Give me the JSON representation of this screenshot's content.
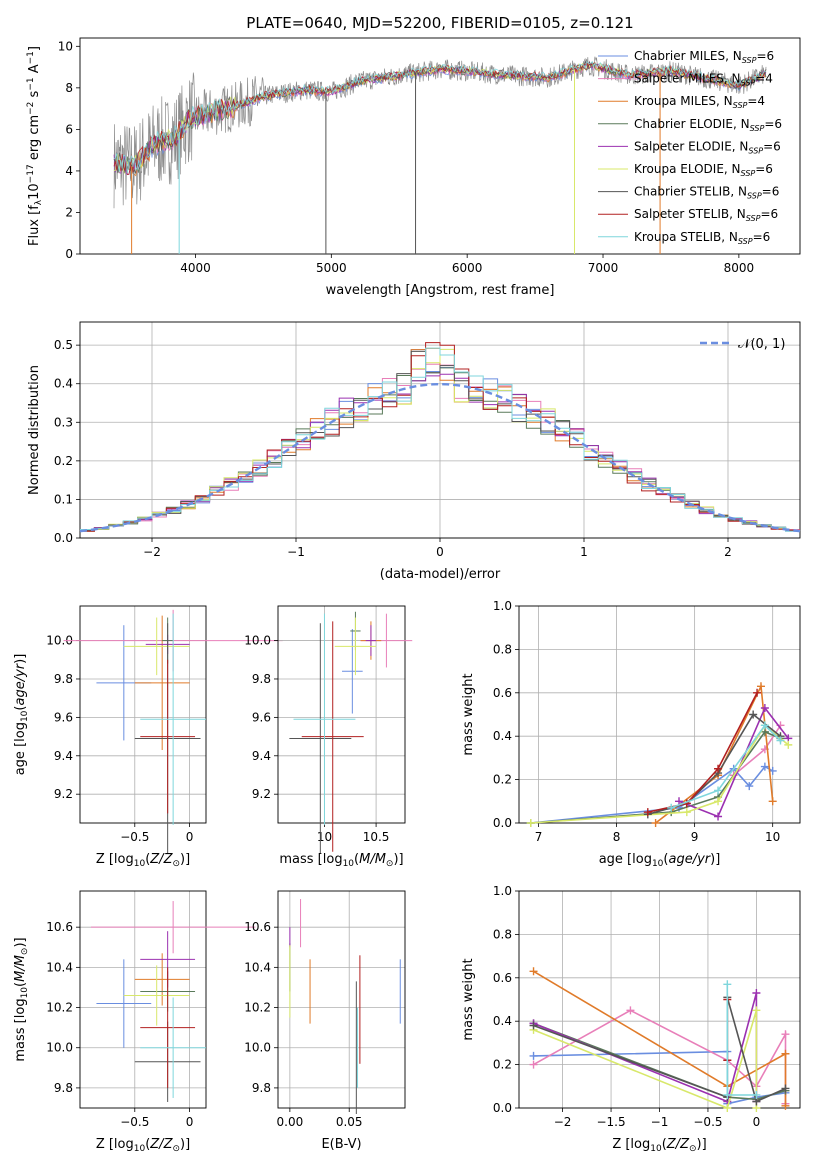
{
  "figure": {
    "title": "PLATE=0640, MJD=52200, FIBERID=0105, z=0.121"
  },
  "colors": {
    "chabrier_miles": "#6a8ee0",
    "salpeter_miles": "#e87fb9",
    "kroupa_miles": "#e07b2a",
    "chabrier_elodie": "#5a7a5a",
    "salpeter_elodie": "#9b30b0",
    "kroupa_elodie": "#d8e86a",
    "chabrier_stelib": "#555555",
    "salpeter_stelib": "#b22020",
    "kroupa_stelib": "#7fd6dc",
    "data": "#8c8c8c"
  },
  "chart_data": [
    {
      "type": "line",
      "id": "spectrum",
      "xlabel": "wavelength [Angstrom, rest frame]",
      "ylabel": "Flux [f_λ 10^-17 erg cm^-2 s^-1 A^-1]",
      "xlim": [
        3150,
        8450
      ],
      "ylim": [
        0,
        10.4
      ],
      "xticks": [
        4000,
        5000,
        6000,
        7000,
        8000
      ],
      "yticks": [
        0,
        2,
        4,
        6,
        8,
        10
      ],
      "legend_position": "top-right",
      "legend": [
        {
          "label": "Chabrier MILES, N_SSP=6",
          "color": "#6a8ee0"
        },
        {
          "label": "Salpeter MILES, N_SSP=4",
          "color": "#e87fb9"
        },
        {
          "label": "Kroupa MILES, N_SSP=4",
          "color": "#e07b2a"
        },
        {
          "label": "Chabrier ELODIE, N_SSP=6",
          "color": "#5a7a5a"
        },
        {
          "label": "Salpeter ELODIE, N_SSP=6",
          "color": "#9b30b0"
        },
        {
          "label": "Kroupa ELODIE, N_SSP=6",
          "color": "#d8e86a"
        },
        {
          "label": "Chabrier STELIB, N_SSP=6",
          "color": "#555555"
        },
        {
          "label": "Salpeter STELIB, N_SSP=6",
          "color": "#b22020"
        },
        {
          "label": "Kroupa STELIB, N_SSP=6",
          "color": "#7fd6dc"
        }
      ],
      "continuum": [
        [
          3400,
          4.4
        ],
        [
          3550,
          4.2
        ],
        [
          3700,
          5.3
        ],
        [
          3850,
          5.6
        ],
        [
          3950,
          6.5
        ],
        [
          4100,
          6.8
        ],
        [
          4300,
          7.1
        ],
        [
          4500,
          7.6
        ],
        [
          4800,
          7.9
        ],
        [
          5000,
          7.8
        ],
        [
          5200,
          8.3
        ],
        [
          5500,
          8.6
        ],
        [
          5800,
          8.9
        ],
        [
          6000,
          8.8
        ],
        [
          6300,
          8.6
        ],
        [
          6600,
          8.5
        ],
        [
          6900,
          9.1
        ],
        [
          7200,
          8.6
        ],
        [
          7500,
          8.8
        ],
        [
          7800,
          8.4
        ],
        [
          8000,
          8.1
        ],
        [
          8200,
          8.7
        ]
      ]
    },
    {
      "type": "histogram",
      "id": "residuals",
      "xlabel": "(data-model)/error",
      "ylabel": "Normed distribution",
      "xlim": [
        -2.5,
        2.5
      ],
      "ylim": [
        0,
        0.56
      ],
      "xticks": [
        -2,
        -1,
        0,
        1,
        2
      ],
      "yticks": [
        0.0,
        0.1,
        0.2,
        0.3,
        0.4,
        0.5
      ],
      "legend_position": "top-right",
      "reference_curve": {
        "label": "𝒩(0, 1)",
        "color": "#6a8ee0",
        "style": "dashed",
        "mean": 0,
        "sigma": 1
      },
      "bin_width": 0.1,
      "bin_start": -2.5
    },
    {
      "type": "errorbar",
      "id": "age_vs_Z",
      "xlabel": "Z [log10(Z/Z☉)]",
      "ylabel": "age [log10(age/yr)]",
      "xlim": [
        -1.0,
        0.15
      ],
      "ylim": [
        9.05,
        10.18
      ],
      "xticks": [
        -0.5,
        0.0
      ],
      "yticks": [
        9.2,
        9.4,
        9.6,
        9.8,
        10.0
      ],
      "points": [
        {
          "model": "chabrier_miles",
          "x": -0.6,
          "y": 9.78,
          "xerr": 0.25,
          "yerr": 0.3
        },
        {
          "model": "salpeter_miles",
          "x": -0.15,
          "y": 10.0,
          "xerr": 1.0,
          "yerr": 0.16
        },
        {
          "model": "kroupa_miles",
          "x": -0.25,
          "y": 9.78,
          "xerr": 0.25,
          "yerr": 0.35
        },
        {
          "model": "chabrier_elodie",
          "x": -0.2,
          "y": 10.0,
          "xerr": 0.05,
          "yerr": 0.12
        },
        {
          "model": "salpeter_elodie",
          "x": -0.2,
          "y": 9.98,
          "xerr": 0.2,
          "yerr": 0.05
        },
        {
          "model": "kroupa_elodie",
          "x": -0.3,
          "y": 9.97,
          "xerr": 0.3,
          "yerr": 0.15
        },
        {
          "model": "chabrier_stelib",
          "x": -0.2,
          "y": 9.49,
          "xerr": 0.3,
          "yerr": 0.6
        },
        {
          "model": "salpeter_stelib",
          "x": -0.2,
          "y": 9.5,
          "xerr": 0.25,
          "yerr": 0.4
        },
        {
          "model": "kroupa_stelib",
          "x": -0.15,
          "y": 9.59,
          "xerr": 0.3,
          "yerr": 0.55
        }
      ]
    },
    {
      "type": "errorbar",
      "id": "age_vs_mass",
      "xlabel": "mass [log10(M/M☉)]",
      "ylabel": "",
      "xlim": [
        9.55,
        10.78
      ],
      "ylim": [
        9.05,
        10.18
      ],
      "xticks": [
        10.0,
        10.5
      ],
      "yticks": [
        9.2,
        9.4,
        9.6,
        9.8,
        10.0
      ],
      "points": [
        {
          "model": "chabrier_miles",
          "x": 10.27,
          "y": 9.84,
          "xerr": 0.1,
          "yerr": 0.22
        },
        {
          "model": "salpeter_miles",
          "x": 10.6,
          "y": 10.0,
          "xerr": 0.25,
          "yerr": 0.14
        },
        {
          "model": "kroupa_miles",
          "x": 10.45,
          "y": 10.0,
          "xerr": 0.1,
          "yerr": 0.1
        },
        {
          "model": "chabrier_elodie",
          "x": 10.3,
          "y": 10.05,
          "xerr": 0.05,
          "yerr": 0.1
        },
        {
          "model": "salpeter_elodie",
          "x": 10.45,
          "y": 10.0,
          "xerr": 0.05,
          "yerr": 0.08
        },
        {
          "model": "kroupa_elodie",
          "x": 10.3,
          "y": 9.97,
          "xerr": 0.2,
          "yerr": 0.15
        },
        {
          "model": "chabrier_stelib",
          "x": 9.96,
          "y": 9.49,
          "xerr": 0.3,
          "yerr": 0.6
        },
        {
          "model": "salpeter_stelib",
          "x": 10.08,
          "y": 9.5,
          "xerr": 0.3,
          "yerr": 0.6
        },
        {
          "model": "kroupa_stelib",
          "x": 10.0,
          "y": 9.59,
          "xerr": 0.3,
          "yerr": 0.55
        }
      ]
    },
    {
      "type": "line",
      "id": "mass_weight_vs_age",
      "xlabel": "age [log10(age/yr)]",
      "ylabel": "mass weight",
      "xlim": [
        6.75,
        10.35
      ],
      "ylim": [
        0,
        1.0
      ],
      "xticks": [
        7,
        8,
        9,
        10
      ],
      "yticks": [
        0.0,
        0.2,
        0.4,
        0.6,
        0.8,
        1.0
      ],
      "series": [
        {
          "model": "chabrier_miles",
          "x": [
            6.9,
            8.8,
            9.5,
            9.7,
            9.9,
            10.0
          ],
          "y": [
            0.0,
            0.07,
            0.25,
            0.17,
            0.26,
            0.24
          ]
        },
        {
          "model": "salpeter_miles",
          "x": [
            9.5,
            9.9,
            10.1
          ],
          "y": [
            0.22,
            0.34,
            0.45
          ]
        },
        {
          "model": "kroupa_miles",
          "x": [
            8.5,
            9.3,
            9.85,
            10.0
          ],
          "y": [
            0.0,
            0.22,
            0.63,
            0.1
          ]
        },
        {
          "model": "chabrier_elodie",
          "x": [
            6.9,
            8.7,
            9.3,
            9.9,
            10.1
          ],
          "y": [
            0.0,
            0.05,
            0.12,
            0.42,
            0.39
          ]
        },
        {
          "model": "salpeter_elodie",
          "x": [
            8.8,
            9.3,
            9.9,
            10.2
          ],
          "y": [
            0.1,
            0.03,
            0.53,
            0.39
          ]
        },
        {
          "model": "kroupa_elodie",
          "x": [
            6.9,
            8.9,
            9.3,
            9.9,
            10.2
          ],
          "y": [
            0.0,
            0.05,
            0.1,
            0.45,
            0.36
          ]
        },
        {
          "model": "chabrier_stelib",
          "x": [
            8.4,
            8.9,
            9.3,
            9.75,
            10.1
          ],
          "y": [
            0.04,
            0.09,
            0.23,
            0.5,
            0.4
          ]
        },
        {
          "model": "salpeter_stelib",
          "x": [
            8.4,
            8.9,
            9.3,
            9.8
          ],
          "y": [
            0.05,
            0.09,
            0.25,
            0.6
          ]
        },
        {
          "model": "kroupa_stelib",
          "x": [
            8.7,
            9.3,
            9.9,
            10.1
          ],
          "y": [
            0.07,
            0.15,
            0.45,
            0.38
          ]
        }
      ]
    },
    {
      "type": "errorbar",
      "id": "mass_vs_Z",
      "xlabel": "Z [log10(Z/Z☉)]",
      "ylabel": "mass [log10(M/M☉)]",
      "xlim": [
        -1.0,
        0.15
      ],
      "ylim": [
        9.7,
        10.78
      ],
      "xticks": [
        -0.5,
        0.0
      ],
      "yticks": [
        9.8,
        10.0,
        10.2,
        10.4,
        10.6
      ],
      "points": [
        {
          "model": "chabrier_miles",
          "x": -0.6,
          "y": 10.22,
          "xerr": 0.25,
          "yerr": 0.22
        },
        {
          "model": "salpeter_miles",
          "x": -0.15,
          "y": 10.6,
          "xerr": 0.75,
          "yerr": 0.13
        },
        {
          "model": "kroupa_miles",
          "x": -0.25,
          "y": 10.34,
          "xerr": 0.25,
          "yerr": 0.13
        },
        {
          "model": "chabrier_elodie",
          "x": -0.2,
          "y": 10.28,
          "xerr": 0.25,
          "yerr": 0.1
        },
        {
          "model": "salpeter_elodie",
          "x": -0.2,
          "y": 10.44,
          "xerr": 0.25,
          "yerr": 0.14
        },
        {
          "model": "kroupa_elodie",
          "x": -0.3,
          "y": 10.26,
          "xerr": 0.3,
          "yerr": 0.15
        },
        {
          "model": "chabrier_stelib",
          "x": -0.2,
          "y": 9.93,
          "xerr": 0.3,
          "yerr": 0.2
        },
        {
          "model": "salpeter_stelib",
          "x": -0.2,
          "y": 10.1,
          "xerr": 0.25,
          "yerr": 0.3
        },
        {
          "model": "kroupa_stelib",
          "x": -0.15,
          "y": 10.0,
          "xerr": 0.3,
          "yerr": 0.25
        }
      ]
    },
    {
      "type": "errorbar",
      "id": "mass_vs_ebv",
      "xlabel": "E(B-V)",
      "ylabel": "",
      "xlim": [
        -0.01,
        0.097
      ],
      "ylim": [
        9.7,
        10.78
      ],
      "xticks": [
        0.0,
        0.05
      ],
      "xtick_labels": [
        "0.00",
        "0.05"
      ],
      "yticks": [
        9.8,
        10.0,
        10.2,
        10.4,
        10.6
      ],
      "points": [
        {
          "model": "chabrier_miles",
          "x": 0.093,
          "y": 10.28,
          "xerr": 0.0,
          "yerr": 0.16
        },
        {
          "model": "salpeter_miles",
          "x": 0.009,
          "y": 10.62,
          "xerr": 0.0,
          "yerr": 0.12
        },
        {
          "model": "kroupa_miles",
          "x": 0.017,
          "y": 10.28,
          "xerr": 0.0,
          "yerr": 0.16
        },
        {
          "model": "chabrier_elodie",
          "x": 0.0,
          "y": 10.4,
          "xerr": 0.0,
          "yerr": 0.12
        },
        {
          "model": "salpeter_elodie",
          "x": 0.0,
          "y": 10.55,
          "xerr": 0.0,
          "yerr": 0.05
        },
        {
          "model": "kroupa_elodie",
          "x": 0.0,
          "y": 10.33,
          "xerr": 0.0,
          "yerr": 0.18
        },
        {
          "model": "chabrier_stelib",
          "x": 0.056,
          "y": 10.0,
          "xerr": 0.0,
          "yerr": 0.33
        },
        {
          "model": "salpeter_stelib",
          "x": 0.059,
          "y": 10.19,
          "xerr": 0.0,
          "yerr": 0.27
        },
        {
          "model": "kroupa_stelib",
          "x": 0.057,
          "y": 10.0,
          "xerr": 0.0,
          "yerr": 0.2
        }
      ]
    },
    {
      "type": "line",
      "id": "mass_weight_vs_Z",
      "xlabel": "Z [log10(Z/Z☉)]",
      "ylabel": "mass weight",
      "xlim": [
        -2.45,
        0.45
      ],
      "ylim": [
        0,
        1.0
      ],
      "xticks": [
        -2.0,
        -1.5,
        -1.0,
        -0.5,
        0.0
      ],
      "yticks": [
        0.0,
        0.2,
        0.4,
        0.6,
        0.8,
        1.0
      ],
      "series": [
        {
          "model": "chabrier_miles",
          "x": [
            -2.3,
            -0.3,
            -0.3,
            0.0,
            0.3
          ],
          "y": [
            0.24,
            0.26,
            0.02,
            0.05,
            0.07
          ]
        },
        {
          "model": "salpeter_miles",
          "x": [
            -2.3,
            -1.3,
            -0.3,
            0.0,
            0.3,
            0.3
          ],
          "y": [
            0.2,
            0.45,
            0.22,
            0.1,
            0.34,
            0.02
          ]
        },
        {
          "model": "kroupa_miles",
          "x": [
            -2.3,
            -0.3,
            0.3,
            0.3
          ],
          "y": [
            0.63,
            0.1,
            0.25,
            0.01
          ]
        },
        {
          "model": "chabrier_elodie",
          "x": [
            -2.3,
            -0.3,
            0.0,
            0.3
          ],
          "y": [
            0.39,
            0.05,
            0.04,
            0.08
          ]
        },
        {
          "model": "salpeter_elodie",
          "x": [
            -2.3,
            -0.3,
            0.0,
            0.0
          ],
          "y": [
            0.39,
            0.03,
            0.53,
            0.03
          ]
        },
        {
          "model": "kroupa_elodie",
          "x": [
            -2.3,
            -0.3,
            0.0,
            0.0
          ],
          "y": [
            0.36,
            0.0,
            0.45,
            0.0
          ]
        },
        {
          "model": "chabrier_stelib",
          "x": [
            -2.3,
            -0.3,
            -0.3,
            0.0,
            0.3
          ],
          "y": [
            0.38,
            0.05,
            0.51,
            0.03,
            0.09
          ]
        },
        {
          "model": "salpeter_stelib",
          "x": [
            -0.3,
            -0.3
          ],
          "y": [
            0.22,
            0.5
          ]
        },
        {
          "model": "kroupa_stelib",
          "x": [
            -0.3,
            -0.3,
            0.0
          ],
          "y": [
            0.57,
            0.06,
            0.06
          ]
        }
      ]
    }
  ]
}
